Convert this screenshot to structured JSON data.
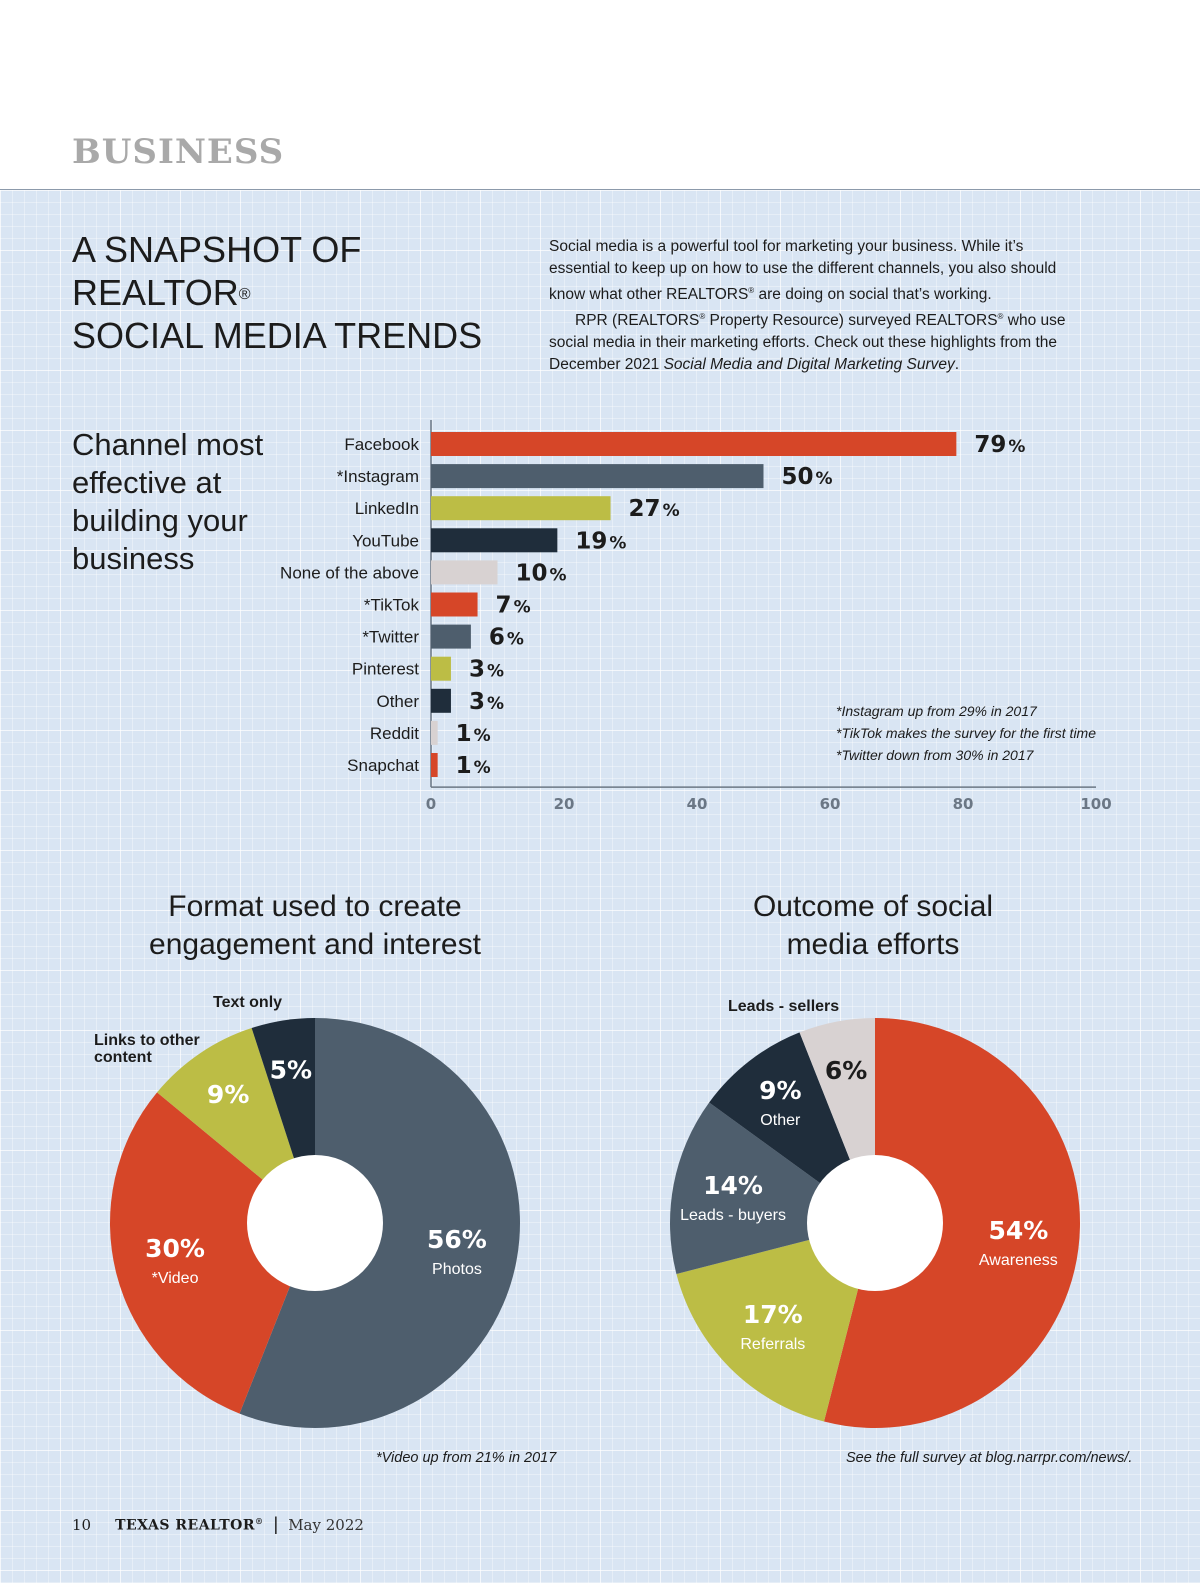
{
  "header": {
    "section": "BUSINESS"
  },
  "title": {
    "line1": "A SNAPSHOT OF REALTOR",
    "reg": "®",
    "line2": "SOCIAL MEDIA TRENDS"
  },
  "intro": {
    "p1_a": "Social media is a powerful tool for marketing your business. While it’s essential to keep up on how to use the different channels, you also should know what other REALTORS",
    "p1_reg": "®",
    "p1_b": " are doing on social that’s working.",
    "p2_a": "RPR (REALTORS",
    "p2_reg1": "®",
    "p2_b": " Property Resource) surveyed REALTORS",
    "p2_reg2": "®",
    "p2_c": " who use social media in their marketing efforts. Check out these highlights from the December 2021 ",
    "p2_italic": "Social Media and Digital Marketing Survey",
    "p2_end": "."
  },
  "colors": {
    "red": "#d64628",
    "slate": "#4e5e6d",
    "olive": "#bcbd45",
    "navy": "#1f2d3b",
    "light": "#d8d2d2"
  },
  "chart_data": [
    {
      "type": "bar",
      "orientation": "horizontal",
      "title": "Channel most effective at building your business",
      "categories": [
        "Facebook",
        "*Instagram",
        "LinkedIn",
        "YouTube",
        "None of the above",
        "*TikTok",
        "*Twitter",
        "Pinterest",
        "Other",
        "Reddit",
        "Snapchat"
      ],
      "values": [
        79,
        50,
        27,
        19,
        10,
        7,
        6,
        3,
        3,
        1,
        1
      ],
      "value_labels": [
        "79",
        "50",
        "27",
        "19",
        "10",
        "7",
        "6",
        "3",
        "3",
        "1",
        "1"
      ],
      "value_suffix": "%",
      "bar_colors": [
        "#d64628",
        "#4e5e6d",
        "#bcbd45",
        "#1f2d3b",
        "#d8d2d2",
        "#d64628",
        "#4e5e6d",
        "#bcbd45",
        "#1f2d3b",
        "#d8d2d2",
        "#d64628"
      ],
      "xlim": [
        0,
        100
      ],
      "xticks": [
        0,
        20,
        40,
        60,
        80,
        100
      ],
      "grid": false,
      "notes": [
        "*Instagram up from 29% in 2017",
        "*TikTok makes the survey for the first time",
        "*Twitter down from 30% in 2017"
      ]
    },
    {
      "type": "pie",
      "donut": true,
      "title_line1": "Format used to create",
      "title_line2": "engagement and interest",
      "slices": [
        {
          "label": "Photos",
          "value": 56,
          "pct_label": "56%",
          "color": "#4e5e6d",
          "label_inside": true
        },
        {
          "label": "*Video",
          "value": 30,
          "pct_label": "30%",
          "color": "#d64628",
          "label_inside": true
        },
        {
          "label": "Links to other content",
          "value": 9,
          "pct_label": "9%",
          "color": "#bcbd45",
          "label_inside": false
        },
        {
          "label": "Text only",
          "value": 5,
          "pct_label": "5%",
          "color": "#1f2d3b",
          "label_inside": false
        }
      ],
      "footnote": "*Video up from 21% in 2017"
    },
    {
      "type": "pie",
      "donut": true,
      "title_line1": "Outcome of social",
      "title_line2": "media efforts",
      "slices": [
        {
          "label": "Awareness",
          "value": 54,
          "pct_label": "54%",
          "color": "#d64628",
          "label_inside": true
        },
        {
          "label": "Referrals",
          "value": 17,
          "pct_label": "17%",
          "color": "#bcbd45",
          "label_inside": true
        },
        {
          "label": "Leads - buyers",
          "value": 14,
          "pct_label": "14%",
          "color": "#4e5e6d",
          "label_inside": true
        },
        {
          "label": "Other",
          "value": 9,
          "pct_label": "9%",
          "color": "#1f2d3b",
          "label_inside": true
        },
        {
          "label": "Leads - sellers",
          "value": 6,
          "pct_label": "6%",
          "color": "#d8d2d2",
          "label_inside": false
        }
      ],
      "footnote": "See the full survey at blog.narrpr.com/news/."
    }
  ],
  "footer": {
    "page": "10",
    "publication": "TEXAS REALTOR",
    "reg": "®",
    "separator": "|",
    "date": "May 2022"
  }
}
